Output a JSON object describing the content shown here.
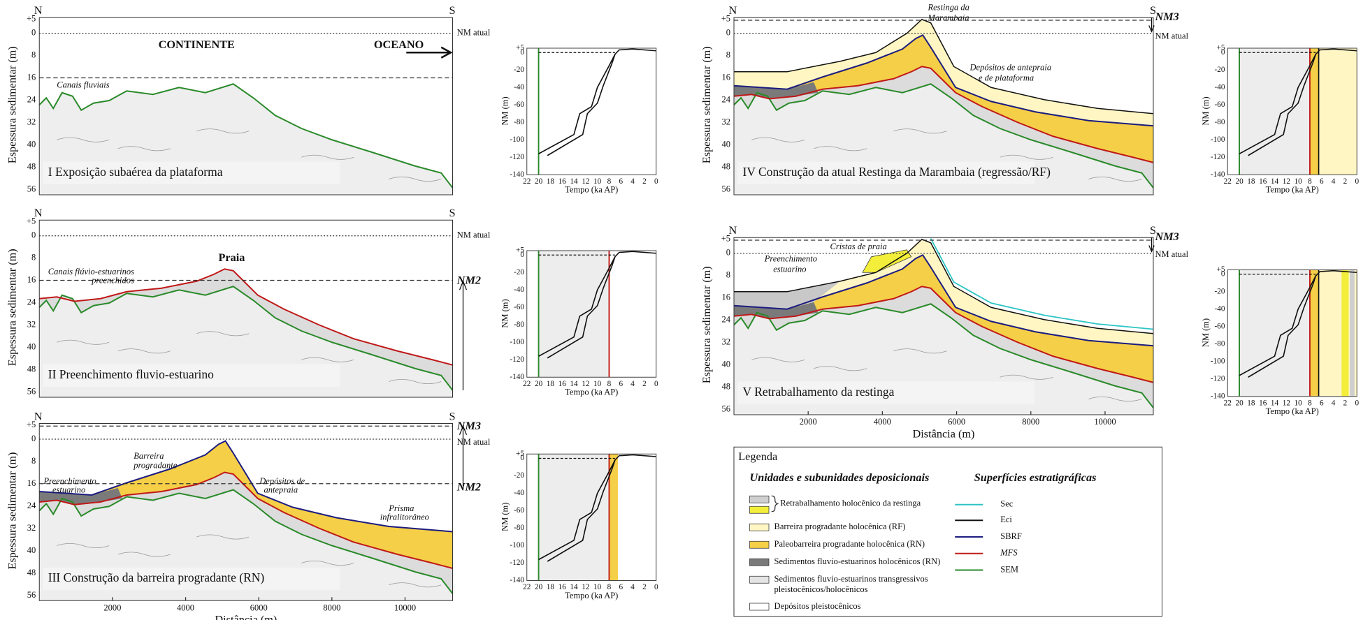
{
  "panels": [
    {
      "north": "N",
      "south": "S",
      "y_label": "Espessura sedimentar (m)",
      "yticks": [
        "+5",
        0,
        8,
        16,
        24,
        32,
        40,
        48,
        56
      ],
      "title": "I  Exposição subaérea da plataforma",
      "labels": [
        "NM atual",
        "CONTINENTE",
        "OCEANO",
        "Canais fluviais"
      ]
    },
    {
      "north": "N",
      "south": "S",
      "y_label": "Espessura sedimentar (m)",
      "yticks": [
        "+5",
        0,
        8,
        16,
        24,
        32,
        40,
        48,
        56
      ],
      "title": "II  Preenchimento fluvio-estuarino",
      "labels": [
        "NM atual",
        "Praia",
        "Canais flúvio-estuarinos",
        "preenchidos",
        "NM2"
      ]
    },
    {
      "north": "N",
      "south": "S",
      "y_label": "Espessura sedimentar (m)",
      "yticks": [
        "+5",
        0,
        8,
        16,
        24,
        32,
        40,
        48,
        56
      ],
      "xticks": [
        2000,
        4000,
        6000,
        8000,
        10000
      ],
      "x_label": "Distância (m)",
      "title": "III  Construção da barreira progradante (RN)",
      "labels": [
        "NM3",
        "NM atual",
        "NM2",
        "Barreira",
        "progradante",
        "Preenchimento",
        "estuarino",
        "Depósitos de",
        "antepraia",
        "Prisma",
        "infralitorâneo"
      ]
    },
    {
      "north": "N",
      "south": "S",
      "y_label": "Espessura sedimentar (m)",
      "yticks": [
        "+5",
        0,
        8,
        16,
        24,
        32,
        40,
        48,
        56
      ],
      "title": "IV  Construção da atual Restinga da Marambaia (regressão/RF)",
      "labels": [
        "NM3",
        "NM atual",
        "Restinga da",
        "Marambaia",
        "Depósitos de antepraia",
        "e de plataforma"
      ]
    },
    {
      "north": "N",
      "south": "S",
      "y_label": "Espessura sedimentar (m)",
      "yticks": [
        "+5",
        0,
        8,
        16,
        24,
        32,
        40,
        48,
        56
      ],
      "xticks": [
        2000,
        4000,
        6000,
        8000,
        10000
      ],
      "x_label": "Distância (m)",
      "title": "V  Retrabalhamento da restinga",
      "labels": [
        "NM3",
        "NM atual",
        "Cristas de praia",
        "Preenchimento",
        "estuarino"
      ]
    }
  ],
  "sea_level_charts": [
    {
      "y_label": "NM (m)",
      "x_label": "Tempo (ka AP)",
      "yticks": [
        "+5",
        0,
        -20,
        -40,
        -60,
        -80,
        -100,
        -120,
        -140
      ],
      "xticks": [
        22,
        20,
        18,
        16,
        14,
        12,
        10,
        8,
        6,
        4,
        2,
        0
      ]
    },
    {
      "y_label": "NM (m)",
      "x_label": "Tempo (ka AP)",
      "yticks": [
        "+5",
        0,
        -20,
        -40,
        -60,
        -80,
        -100,
        -120,
        -140
      ],
      "xticks": [
        22,
        20,
        18,
        16,
        14,
        12,
        10,
        8,
        6,
        4,
        2,
        0
      ]
    },
    {
      "y_label": "NM (m)",
      "x_label": "Tempo (ka AP)",
      "yticks": [
        "+5",
        0,
        -20,
        -40,
        -60,
        -80,
        -100,
        -120,
        -140
      ],
      "xticks": [
        22,
        20,
        18,
        16,
        14,
        12,
        10,
        8,
        6,
        4,
        2,
        0
      ]
    },
    {
      "y_label": "NM (m)",
      "x_label": "Tempo (ka AP)",
      "yticks": [
        "+5",
        0,
        -20,
        -40,
        -60,
        -80,
        -100,
        -120,
        -140
      ],
      "xticks": [
        22,
        20,
        18,
        16,
        14,
        12,
        10,
        8,
        6,
        4,
        2,
        0
      ]
    },
    {
      "y_label": "NM (m)",
      "x_label": "Tempo (ka AP)",
      "yticks": [
        "+5",
        0,
        -20,
        -40,
        -60,
        -80,
        -100,
        -120,
        -140
      ],
      "xticks": [
        22,
        20,
        18,
        16,
        14,
        12,
        10,
        8,
        6,
        4,
        2,
        0
      ]
    }
  ],
  "legend": {
    "title": "Legenda",
    "units_header": "Unidades e subunidades deposicionais",
    "surfaces_header": "Superfícies estratigráficas",
    "units": [
      "Retrabalhamento holocênico da restinga",
      "Barreira progradante holocênica (RF)",
      "Paleobarreira progradante holocênica (RN)",
      "Sedimentos fluvio-estuarinos holocênicos (RN)",
      "Sedimentos fluvio-estuarinos transgressivos",
      "pleistocênicos/holocênicos",
      "Depósitos pleistocênicos"
    ],
    "surfaces": [
      "Sec",
      "Eci",
      "SBRF",
      "MFS",
      "SEM"
    ]
  }
}
